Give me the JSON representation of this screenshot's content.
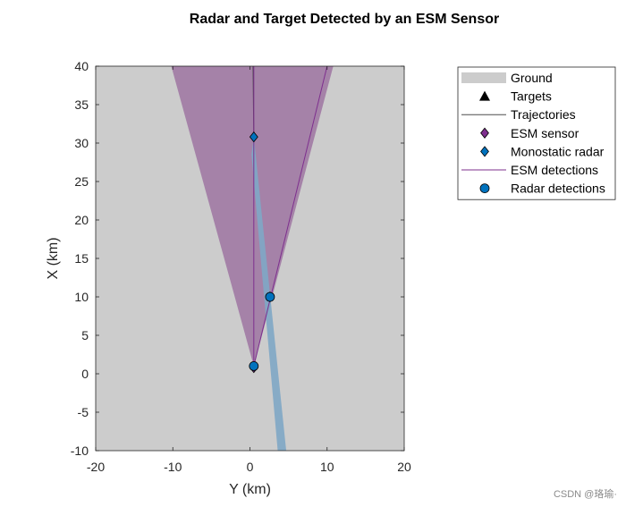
{
  "watermark": "CSDN @珞瑜·",
  "chart_data": {
    "type": "scatter",
    "title": "Radar and Target Detected by an ESM Sensor",
    "xlabel": "Y (km)",
    "ylabel": "X (km)",
    "xlim": [
      -20,
      20
    ],
    "ylim": [
      -10,
      40
    ],
    "xticks": [
      -20,
      -10,
      0,
      10,
      20
    ],
    "yticks": [
      -10,
      -5,
      0,
      5,
      10,
      15,
      20,
      25,
      30,
      35,
      40
    ],
    "x_tick_labels": [
      "-20",
      "-10",
      "0",
      "10",
      "20"
    ],
    "y_tick_labels": [
      "-10",
      "-5",
      "0",
      "5",
      "10",
      "15",
      "20",
      "25",
      "30",
      "35",
      "40"
    ],
    "grid": false,
    "legend_position": "outside top-right",
    "colors": {
      "ground": "#cccccc",
      "esm_coverage": "#a582a8",
      "radar_beam": "#7fa7c5",
      "esm_line": "#7e2f8e",
      "trajectory": "#4d4d4d",
      "esm_marker": "#7e2f8e",
      "radar_marker": "#0072bd"
    },
    "ground": {
      "y_range": [
        -20,
        20
      ],
      "x_range": [
        -10,
        40
      ]
    },
    "esm_coverage": {
      "vertex": [
        0.5,
        1.0
      ],
      "top_y_range": [
        -10.2,
        10.8
      ],
      "top_x": 40
    },
    "radar_beam": {
      "polygon": [
        [
          0.5,
          30.8
        ],
        [
          0.2,
          28.5
        ],
        [
          3.6,
          -10
        ],
        [
          4.7,
          -10
        ]
      ]
    },
    "series": [
      {
        "name": "Trajectories",
        "type": "line",
        "points": [
          [
            0.4,
            40
          ],
          [
            0.5,
            30.8
          ]
        ]
      },
      {
        "name": "ESM sensor",
        "type": "marker",
        "marker": "diamond",
        "points": [
          [
            0.5,
            0.8
          ]
        ]
      },
      {
        "name": "Monostatic radar",
        "type": "marker",
        "marker": "diamond",
        "points": [
          [
            0.5,
            30.8
          ],
          [
            2.6,
            10.0
          ]
        ]
      },
      {
        "name": "ESM detections",
        "type": "line",
        "points": [
          [
            0.5,
            1.0
          ],
          [
            10.0,
            40
          ],
          [
            0.5,
            1.0
          ],
          [
            0.5,
            40
          ]
        ]
      },
      {
        "name": "Radar detections",
        "type": "marker",
        "marker": "circle",
        "points": [
          [
            0.5,
            1.0
          ],
          [
            2.6,
            10.0
          ]
        ]
      }
    ],
    "legend": [
      {
        "label": "Ground",
        "kind": "patch",
        "color": "#cccccc"
      },
      {
        "label": "Targets",
        "kind": "triangle",
        "color": "#000000"
      },
      {
        "label": "Trajectories",
        "kind": "line",
        "color": "#4d4d4d"
      },
      {
        "label": "ESM sensor",
        "kind": "diamond",
        "color": "#7e2f8e"
      },
      {
        "label": "Monostatic radar",
        "kind": "diamond",
        "color": "#0072bd"
      },
      {
        "label": "ESM detections",
        "kind": "line",
        "color": "#7e2f8e"
      },
      {
        "label": "Radar detections",
        "kind": "circle",
        "color": "#0072bd"
      }
    ]
  }
}
